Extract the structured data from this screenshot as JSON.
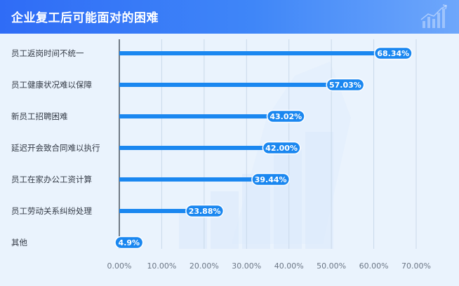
{
  "header": {
    "title": "企业复工后可能面对的困难"
  },
  "chart_data": {
    "type": "bar",
    "orientation": "horizontal",
    "title": "企业复工后可能面对的困难",
    "categories": [
      "员工返岗时间不统一",
      "员工健康状况难以保障",
      "新员工招聘困难",
      "延迟开会致合同难以执行",
      "员工在家办公工资计算",
      "员工劳动关系纠纷处理",
      "其他"
    ],
    "values": [
      68.34,
      57.03,
      43.02,
      42.0,
      39.44,
      23.88,
      4.9
    ],
    "value_labels": [
      "68.34%",
      "57.03%",
      "43.02%",
      "42.00%",
      "39.44%",
      "23.88%",
      "4.9%"
    ],
    "xlim": [
      0,
      70
    ],
    "x_ticks": [
      0,
      10,
      20,
      30,
      40,
      50,
      60,
      70
    ],
    "x_tick_labels": [
      "0.00%",
      "10.00%",
      "20.00%",
      "30.00%",
      "40.00%",
      "50.00%",
      "60.00%",
      "70.00%"
    ],
    "grid": true,
    "bar_color": "#1a87f0",
    "label_pill_color": "#1a87f0"
  }
}
